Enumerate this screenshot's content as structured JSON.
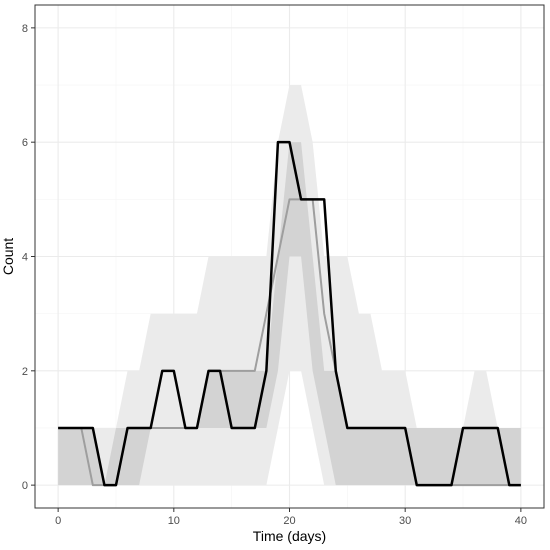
{
  "chart_data": {
    "type": "line",
    "title": "",
    "xlabel": "Time (days)",
    "ylabel": "Count",
    "xlim": [
      -2,
      42
    ],
    "ylim": [
      -0.4,
      8.4
    ],
    "xticks": [
      0,
      10,
      20,
      30,
      40
    ],
    "yticks": [
      0,
      2,
      4,
      6,
      8
    ],
    "grid": true,
    "legend": "none",
    "x": [
      0,
      1,
      2,
      3,
      4,
      5,
      6,
      7,
      8,
      9,
      10,
      11,
      12,
      13,
      14,
      15,
      16,
      17,
      18,
      19,
      20,
      21,
      22,
      23,
      24,
      25,
      26,
      27,
      28,
      29,
      30,
      31,
      32,
      33,
      34,
      35,
      36,
      37,
      38,
      39,
      40
    ],
    "series": [
      {
        "role": "outer band",
        "lower": [
          0,
          0,
          0,
          0,
          0,
          0,
          0,
          0,
          0,
          0,
          0,
          0,
          0,
          0,
          0,
          0,
          0,
          0,
          0,
          1,
          2,
          2,
          1,
          0,
          0,
          0,
          0,
          0,
          0,
          0,
          0,
          0,
          0,
          0,
          0,
          0,
          0,
          0,
          0,
          0,
          0
        ],
        "upper": [
          1,
          1,
          1,
          1,
          1,
          1,
          2,
          2,
          3,
          3,
          3,
          3,
          3,
          4,
          4,
          4,
          4,
          4,
          4,
          6,
          7,
          7,
          6,
          4,
          4,
          4,
          3,
          3,
          2,
          2,
          2,
          1,
          1,
          1,
          1,
          1,
          2,
          2,
          1,
          1,
          1
        ]
      },
      {
        "role": "inner band",
        "lower": [
          0,
          0,
          0,
          0,
          0,
          0,
          0,
          0,
          1,
          1,
          1,
          1,
          1,
          1,
          1,
          1,
          1,
          1,
          1,
          2,
          4,
          4,
          2,
          1,
          0,
          0,
          0,
          0,
          0,
          0,
          0,
          0,
          0,
          0,
          0,
          0,
          0,
          0,
          0,
          0,
          0
        ],
        "upper": [
          1,
          1,
          1,
          1,
          0,
          1,
          1,
          1,
          1,
          1,
          1,
          1,
          1,
          2,
          2,
          2,
          2,
          2,
          2,
          4,
          6,
          6,
          4,
          2,
          2,
          1,
          1,
          1,
          1,
          1,
          1,
          1,
          1,
          1,
          1,
          1,
          1,
          1,
          1,
          1,
          1
        ]
      },
      {
        "role": "median",
        "values": [
          1,
          1,
          1,
          0,
          0,
          0,
          1,
          1,
          1,
          1,
          1,
          1,
          1,
          2,
          2,
          2,
          2,
          2,
          3,
          4,
          5,
          5,
          5,
          3,
          2,
          1,
          1,
          1,
          1,
          1,
          1,
          0,
          0,
          0,
          0,
          0,
          0,
          0,
          0,
          0,
          0
        ]
      },
      {
        "role": "observed",
        "values": [
          1,
          1,
          1,
          1,
          0,
          0,
          1,
          1,
          1,
          2,
          2,
          1,
          1,
          2,
          2,
          1,
          1,
          1,
          2,
          6,
          6,
          5,
          5,
          5,
          2,
          1,
          1,
          1,
          1,
          1,
          1,
          0,
          0,
          0,
          0,
          1,
          1,
          1,
          1,
          0,
          0
        ]
      }
    ],
    "colors": {
      "panel_bg": "#ffffff",
      "panel_border": "#333333",
      "grid_major": "#ebebeb",
      "grid_minor": "#f5f5f5",
      "outer_band": "#ebebeb",
      "inner_band": "#d3d3d3",
      "median_line": "#9e9e9e",
      "observed_line": "#000000",
      "tick_label": "#4d4d4d"
    }
  }
}
